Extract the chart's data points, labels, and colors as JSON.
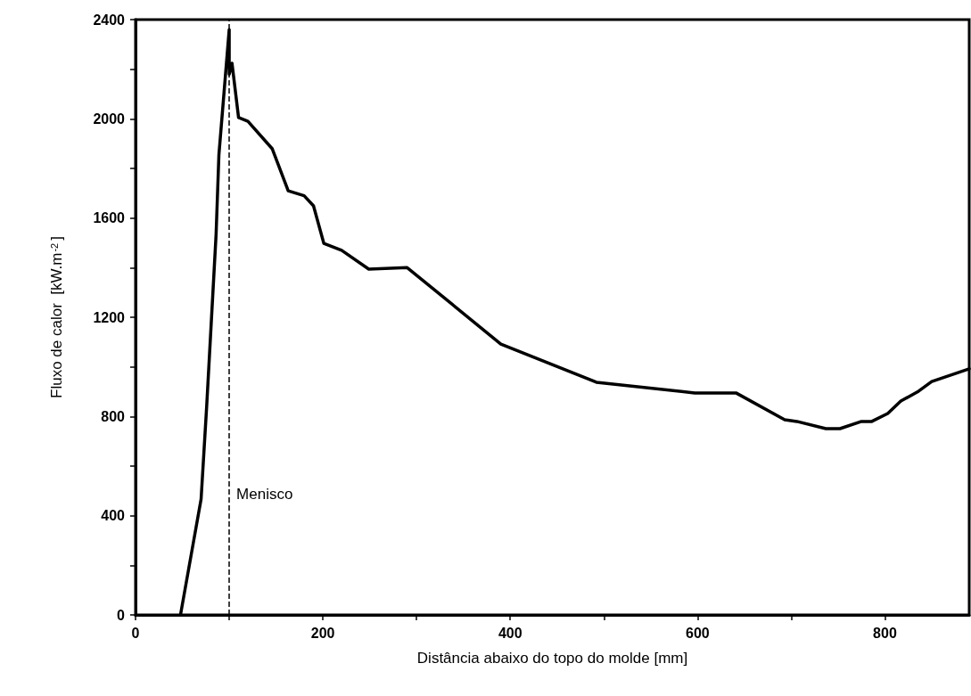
{
  "chart_data": {
    "type": "line",
    "xlabel": "Distância abaixo do topo do molde [mm]",
    "ylabel": "Fluxo de calor  [kW.m$^{-2}$]",
    "xlim": [
      0,
      890
    ],
    "xticks": [
      0,
      {
        "value": 100,
        "label": null
      },
      200,
      {
        "value": 300,
        "label": null
      },
      400,
      {
        "value": 500,
        "label": null
      },
      600,
      {
        "value": 700,
        "label": null
      },
      800
    ],
    "ylim": [
      0,
      2400
    ],
    "yticks": [
      0,
      {
        "value": 200,
        "label": null
      },
      400,
      {
        "value": 600,
        "label": null
      },
      800,
      {
        "value": 1000,
        "label": null
      },
      1200,
      {
        "value": 1400,
        "label": null
      },
      1600,
      {
        "value": 1800,
        "label": null
      },
      2000,
      {
        "value": 2200,
        "label": null
      },
      2400
    ],
    "grid": false,
    "marker": "none",
    "line_style": "solid",
    "series": [
      {
        "color": "#000000",
        "x": [
          48,
          70,
          76,
          86,
          89,
          100,
          100,
          103,
          110,
          120,
          146,
          163,
          180,
          190,
          201,
          220,
          249,
          290,
          390,
          492,
          597,
          641,
          693,
          706,
          737,
          752,
          775,
          786,
          803,
          817,
          836,
          850,
          890
        ],
        "values": [
          0,
          467,
          844,
          1534,
          1854,
          2360,
          2180,
          2224,
          2005,
          1990,
          1879,
          1710,
          1690,
          1649,
          1498,
          1470,
          1394,
          1400,
          1092,
          938,
          895,
          895,
          787,
          780,
          751,
          751,
          780,
          780,
          812,
          862,
          902,
          941,
          992
        ]
      }
    ],
    "ref_lines": [
      {
        "axis": "x",
        "value": 100,
        "label": "Menisco",
        "color": "#000000",
        "line_style": "dashed"
      }
    ]
  }
}
